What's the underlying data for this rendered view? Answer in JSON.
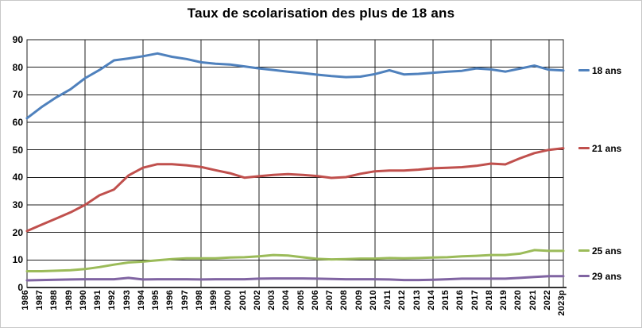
{
  "window": {
    "background": "#ffffff",
    "border_color": "#c8c8c8"
  },
  "style": {
    "grid_color": "#1f1f1f",
    "axis_color": "#333333",
    "text_color": "#000000",
    "series_line_width": 3
  },
  "chart_data": {
    "type": "line",
    "title": "Taux de scolarisation des plus de 18 ans",
    "xlabel": "",
    "ylabel": "",
    "ylim": [
      0,
      90
    ],
    "yticks": [
      0,
      10,
      20,
      30,
      40,
      50,
      60,
      70,
      80,
      90
    ],
    "x_gridline_interval": 4,
    "grid": true,
    "legend_position": "right",
    "categories": [
      "1986",
      "1987",
      "1988",
      "1989",
      "1990",
      "1991",
      "1992",
      "1993",
      "1994",
      "1995",
      "1996",
      "1997",
      "1998",
      "1999",
      "2000",
      "2001",
      "2002",
      "2003",
      "2004",
      "2005",
      "2006",
      "2007",
      "2008",
      "2009",
      "2010",
      "2011",
      "2012",
      "2013",
      "2014",
      "2015",
      "2016",
      "2017",
      "2018",
      "2019",
      "2020",
      "2021",
      "2022",
      "2023p"
    ],
    "series": [
      {
        "name": "18 ans",
        "color": "#4F81BD",
        "values": [
          61.5,
          65.5,
          69,
          72,
          76,
          79,
          82.5,
          83.2,
          84,
          85,
          83.8,
          83,
          81.8,
          81.3,
          81,
          80.3,
          79.6,
          79,
          78.4,
          77.9,
          77.3,
          76.8,
          76.4,
          76.6,
          77.5,
          78.9,
          77.4,
          77.6,
          78,
          78.4,
          78.7,
          79.6,
          79.2,
          78.4,
          79.5,
          80.6,
          79.1,
          78.8
        ]
      },
      {
        "name": "21 ans",
        "color": "#C0504D",
        "values": [
          20.5,
          22.8,
          25,
          27.3,
          30,
          33.5,
          35.6,
          40.7,
          43.5,
          44.8,
          44.8,
          44.4,
          43.8,
          42.6,
          41.5,
          39.9,
          40.4,
          40.9,
          41.2,
          40.9,
          40.5,
          39.8,
          40.1,
          41.3,
          42.2,
          42.5,
          42.5,
          42.8,
          43.3,
          43.5,
          43.7,
          44.2,
          45,
          44.7,
          46.9,
          48.8,
          50,
          50.6
        ]
      },
      {
        "name": "25 ans",
        "color": "#9BBB59",
        "values": [
          5.9,
          5.9,
          6.1,
          6.3,
          6.7,
          7.4,
          8.3,
          9.1,
          9.4,
          9.9,
          10.3,
          10.6,
          10.6,
          10.6,
          10.9,
          11,
          11.3,
          11.8,
          11.6,
          11,
          10.4,
          10.2,
          10.3,
          10.5,
          10.5,
          10.7,
          10.6,
          10.7,
          10.9,
          11,
          11.3,
          11.5,
          11.8,
          11.8,
          12.3,
          13.6,
          13.3,
          13.3
        ]
      },
      {
        "name": "29 ans",
        "color": "#8064A2",
        "values": [
          2.6,
          2.7,
          2.8,
          2.9,
          3,
          3,
          3,
          3.5,
          2.9,
          3,
          3,
          3,
          2.9,
          3,
          3,
          3,
          3.2,
          3.3,
          3.3,
          3.3,
          3.2,
          3.1,
          3,
          3,
          3,
          2.9,
          2.7,
          2.7,
          2.8,
          3,
          3.2,
          3.2,
          3.2,
          3.2,
          3.5,
          3.8,
          4.1,
          4.1
        ]
      }
    ]
  }
}
